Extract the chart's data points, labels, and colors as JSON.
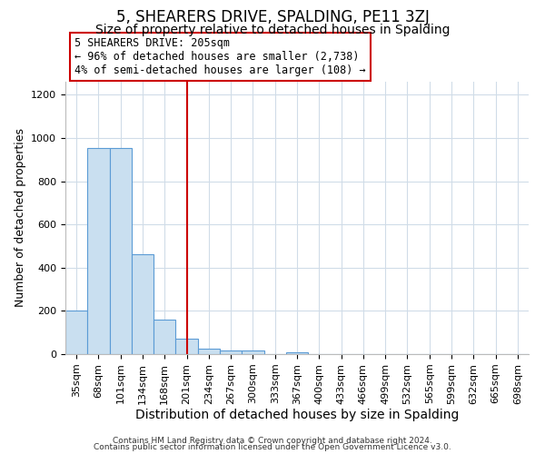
{
  "title": "5, SHEARERS DRIVE, SPALDING, PE11 3ZJ",
  "subtitle": "Size of property relative to detached houses in Spalding",
  "xlabel": "Distribution of detached houses by size in Spalding",
  "ylabel": "Number of detached properties",
  "bar_labels": [
    "35sqm",
    "68sqm",
    "101sqm",
    "134sqm",
    "168sqm",
    "201sqm",
    "234sqm",
    "267sqm",
    "300sqm",
    "333sqm",
    "367sqm",
    "400sqm",
    "433sqm",
    "466sqm",
    "499sqm",
    "532sqm",
    "565sqm",
    "599sqm",
    "632sqm",
    "665sqm",
    "698sqm"
  ],
  "bar_values": [
    200,
    955,
    955,
    460,
    160,
    70,
    25,
    15,
    15,
    0,
    10,
    0,
    0,
    0,
    0,
    0,
    0,
    0,
    0,
    0,
    0
  ],
  "bar_color": "#c9dff0",
  "bar_edge_color": "#5b9bd5",
  "vline_x": 5.0,
  "vline_color": "#cc0000",
  "annotation_title": "5 SHEARERS DRIVE: 205sqm",
  "annotation_line1": "← 96% of detached houses are smaller (2,738)",
  "annotation_line2": "4% of semi-detached houses are larger (108) →",
  "annotation_box_color": "#ffffff",
  "annotation_box_edge": "#cc0000",
  "ylim": [
    0,
    1260
  ],
  "footer1": "Contains HM Land Registry data © Crown copyright and database right 2024.",
  "footer2": "Contains public sector information licensed under the Open Government Licence v3.0.",
  "bg_color": "#ffffff",
  "grid_color": "#d0dce8",
  "title_fontsize": 12,
  "subtitle_fontsize": 10,
  "axis_label_fontsize": 9,
  "tick_fontsize": 8
}
